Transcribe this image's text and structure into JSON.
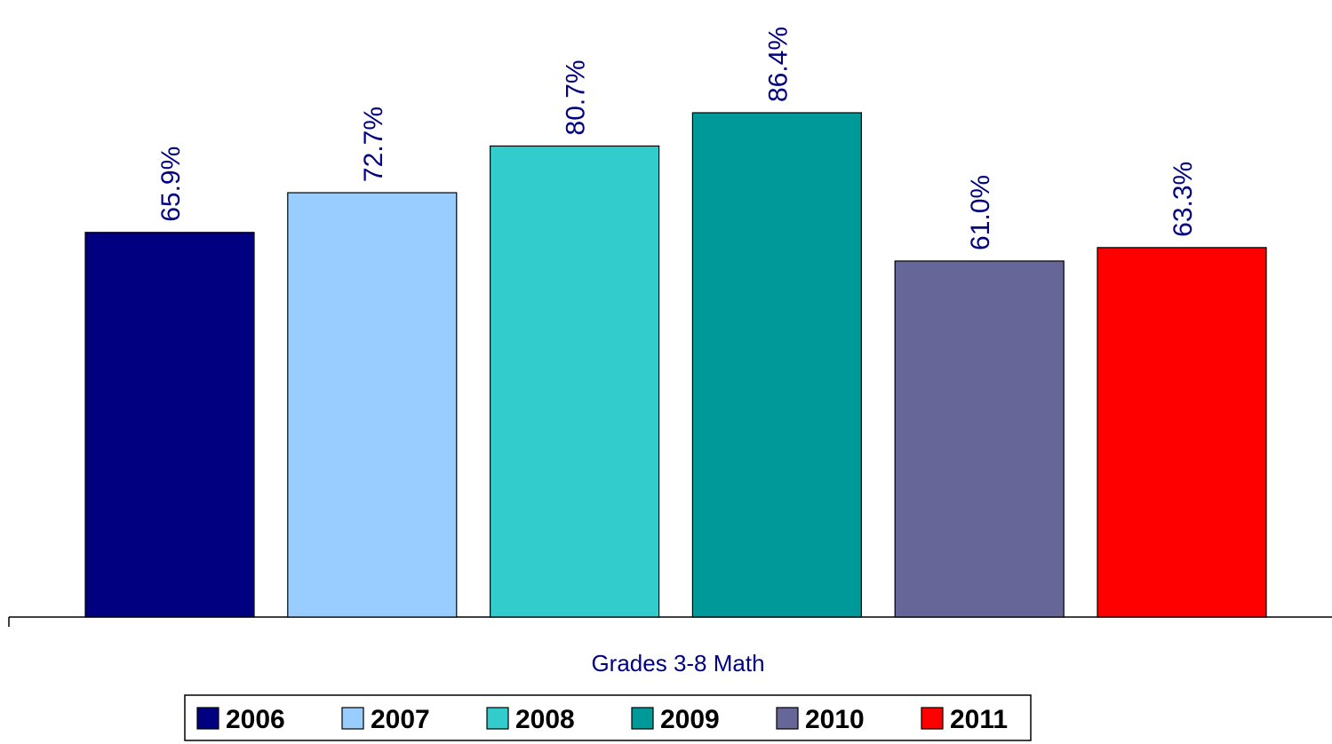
{
  "chart_data": {
    "type": "bar",
    "x_label": "Grades 3-8 Math",
    "categories": [
      "Grades 3-8 Math"
    ],
    "series": [
      {
        "name": "2006",
        "color": "#000080",
        "values": [
          65.9
        ],
        "value_labels": [
          "65.9%"
        ]
      },
      {
        "name": "2007",
        "color": "#99ccff",
        "values": [
          72.7
        ],
        "value_labels": [
          "72.7%"
        ]
      },
      {
        "name": "2008",
        "color": "#33cccc",
        "values": [
          80.7
        ],
        "value_labels": [
          "80.7%"
        ]
      },
      {
        "name": "2009",
        "color": "#009999",
        "values": [
          86.4
        ],
        "value_labels": [
          "86.4%"
        ]
      },
      {
        "name": "2010",
        "color": "#666699",
        "values": [
          61.0
        ],
        "value_labels": [
          "61.0%"
        ]
      },
      {
        "name": "2011",
        "color": "#ff0000",
        "values": [
          63.3
        ],
        "value_labels": [
          "63.3%"
        ]
      }
    ],
    "legend": "bottom"
  }
}
